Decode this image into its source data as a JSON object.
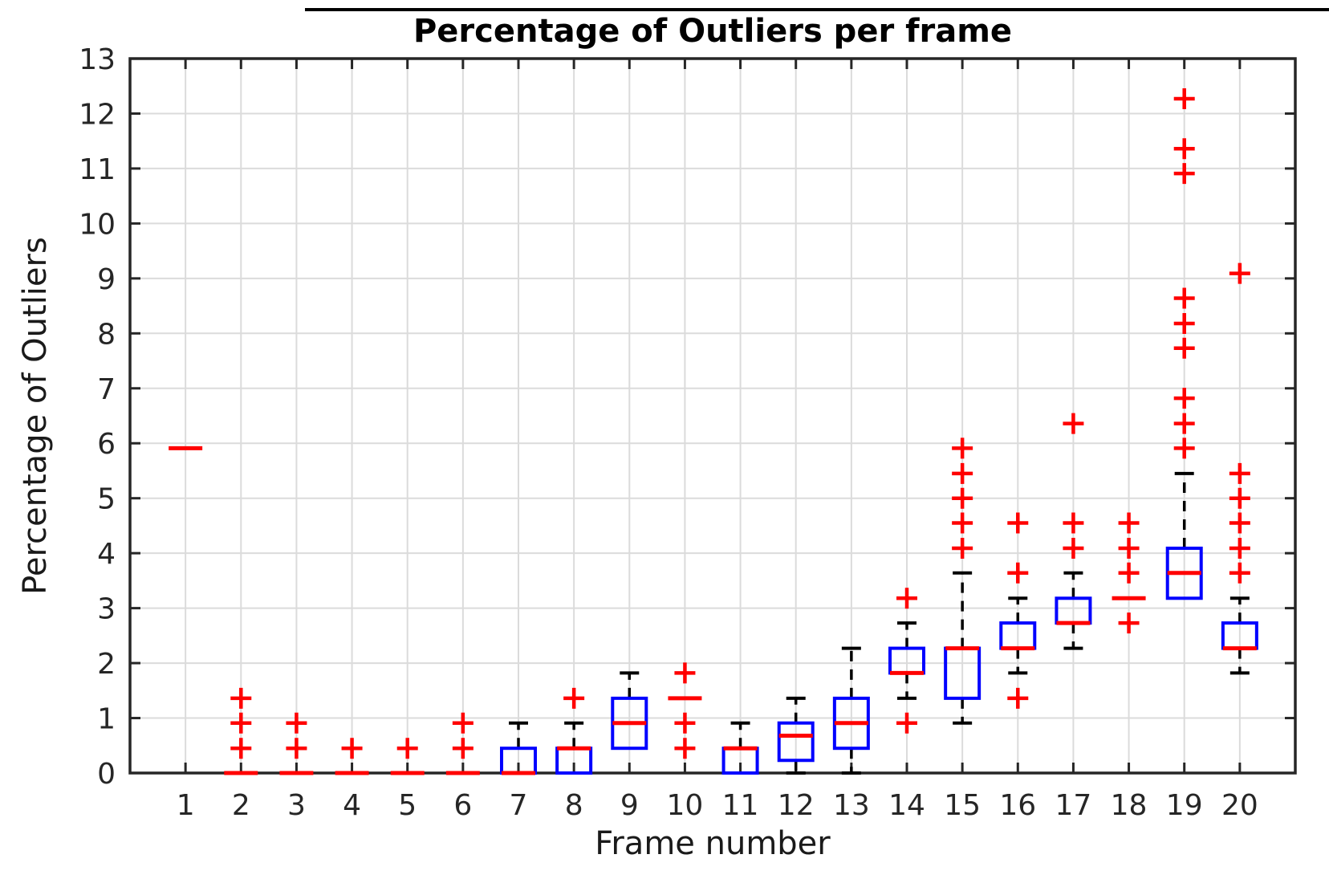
{
  "chart": {
    "title": "Percentage of Outliers per frame",
    "xlabel": "Frame number",
    "ylabel": "Percentage of Outliers"
  },
  "chart_data": {
    "type": "boxplot",
    "title": "Percentage of Outliers per frame",
    "xlabel": "Frame number",
    "ylabel": "Percentage of Outliers",
    "xlim": [
      0,
      21
    ],
    "ylim": [
      0,
      13
    ],
    "x_ticks": [
      1,
      2,
      3,
      4,
      5,
      6,
      7,
      8,
      9,
      10,
      11,
      12,
      13,
      14,
      15,
      16,
      17,
      18,
      19,
      20
    ],
    "y_ticks": [
      0,
      1,
      2,
      3,
      4,
      5,
      6,
      7,
      8,
      9,
      10,
      11,
      12,
      13
    ],
    "grid": true,
    "legend": "none",
    "colors": {
      "box": "#0000ff",
      "median": "#ff0000",
      "outlier": "#ff0000",
      "whisker": "#000000",
      "axis": "#262626",
      "grid": "#dbdbdb",
      "title": "#000000"
    },
    "frames": [
      {
        "frame": 1,
        "q1": null,
        "median": 5.91,
        "q3": null,
        "whisker_low": null,
        "whisker_high": null,
        "outliers": []
      },
      {
        "frame": 2,
        "q1": null,
        "median": 0,
        "q3": null,
        "whisker_low": null,
        "whisker_high": null,
        "outliers": [
          0.45,
          0.91,
          1.36
        ]
      },
      {
        "frame": 3,
        "q1": null,
        "median": 0,
        "q3": null,
        "whisker_low": null,
        "whisker_high": null,
        "outliers": [
          0.45,
          0.91
        ]
      },
      {
        "frame": 4,
        "q1": null,
        "median": 0,
        "q3": null,
        "whisker_low": null,
        "whisker_high": null,
        "outliers": [
          0.45
        ]
      },
      {
        "frame": 5,
        "q1": null,
        "median": 0,
        "q3": null,
        "whisker_low": null,
        "whisker_high": null,
        "outliers": [
          0.45
        ]
      },
      {
        "frame": 6,
        "q1": null,
        "median": 0,
        "q3": null,
        "whisker_low": null,
        "whisker_high": null,
        "outliers": [
          0.45,
          0.91
        ]
      },
      {
        "frame": 7,
        "q1": 0,
        "median": 0,
        "q3": 0.45,
        "whisker_low": 0,
        "whisker_high": 0.91,
        "outliers": []
      },
      {
        "frame": 8,
        "q1": 0,
        "median": 0.45,
        "q3": 0.45,
        "whisker_low": 0,
        "whisker_high": 0.91,
        "outliers": [
          1.36
        ]
      },
      {
        "frame": 9,
        "q1": 0.45,
        "median": 0.91,
        "q3": 1.36,
        "whisker_low": 0.45,
        "whisker_high": 1.82,
        "outliers": []
      },
      {
        "frame": 10,
        "q1": null,
        "median": 1.36,
        "q3": null,
        "whisker_low": null,
        "whisker_high": null,
        "outliers": [
          0.45,
          0.91,
          1.82
        ]
      },
      {
        "frame": 11,
        "q1": 0,
        "median": 0.45,
        "q3": 0.45,
        "whisker_low": 0,
        "whisker_high": 0.91,
        "outliers": []
      },
      {
        "frame": 12,
        "q1": 0.23,
        "median": 0.68,
        "q3": 0.91,
        "whisker_low": 0,
        "whisker_high": 1.36,
        "outliers": []
      },
      {
        "frame": 13,
        "q1": 0.45,
        "median": 0.91,
        "q3": 1.36,
        "whisker_low": 0,
        "whisker_high": 2.27,
        "outliers": []
      },
      {
        "frame": 14,
        "q1": 1.82,
        "median": 1.82,
        "q3": 2.27,
        "whisker_low": 1.36,
        "whisker_high": 2.73,
        "outliers": [
          0.91,
          3.18
        ]
      },
      {
        "frame": 15,
        "q1": 1.36,
        "median": 2.27,
        "q3": 2.27,
        "whisker_low": 0.91,
        "whisker_high": 3.64,
        "outliers": [
          4.09,
          4.55,
          5.0,
          5.45,
          5.91
        ]
      },
      {
        "frame": 16,
        "q1": 2.27,
        "median": 2.27,
        "q3": 2.73,
        "whisker_low": 1.82,
        "whisker_high": 3.18,
        "outliers": [
          1.36,
          3.64,
          4.55
        ]
      },
      {
        "frame": 17,
        "q1": 2.73,
        "median": 2.73,
        "q3": 3.18,
        "whisker_low": 2.27,
        "whisker_high": 3.64,
        "outliers": [
          4.09,
          4.55,
          6.36
        ]
      },
      {
        "frame": 18,
        "q1": null,
        "median": 3.18,
        "q3": null,
        "whisker_low": null,
        "whisker_high": null,
        "outliers": [
          2.73,
          3.64,
          4.09,
          4.55
        ]
      },
      {
        "frame": 19,
        "q1": 3.18,
        "median": 3.64,
        "q3": 4.09,
        "whisker_low": 3.18,
        "whisker_high": 5.45,
        "outliers": [
          5.91,
          6.36,
          6.82,
          7.73,
          8.18,
          8.64,
          10.91,
          11.36,
          12.27
        ]
      },
      {
        "frame": 20,
        "q1": 2.27,
        "median": 2.27,
        "q3": 2.73,
        "whisker_low": 1.82,
        "whisker_high": 3.18,
        "outliers": [
          3.64,
          4.09,
          4.55,
          5.0,
          5.45,
          9.09
        ]
      }
    ]
  }
}
